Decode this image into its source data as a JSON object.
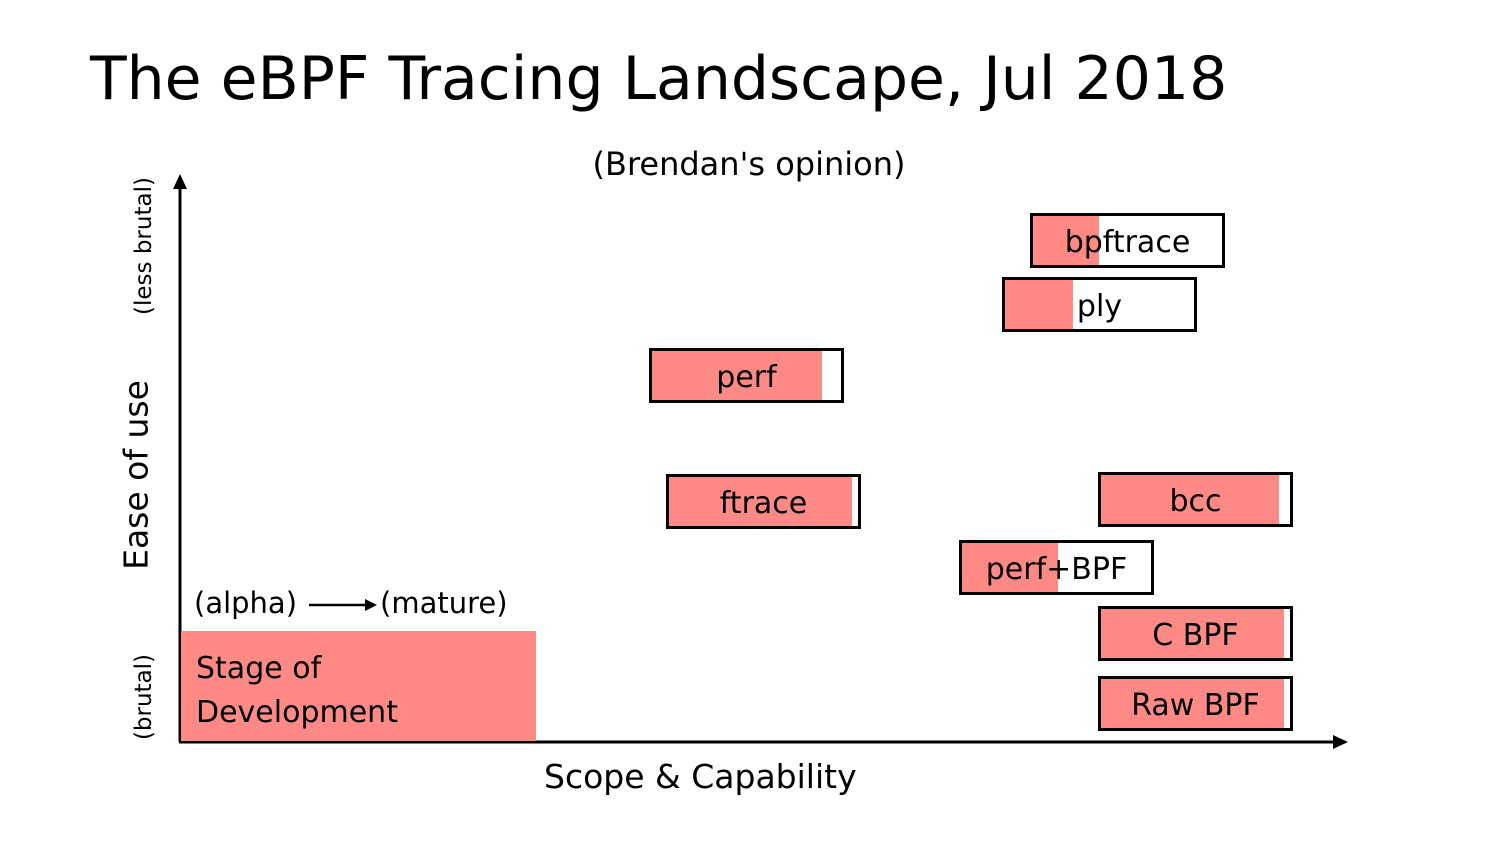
{
  "title": "The eBPF Tracing Landscape, Jul 2018",
  "subtitle": "(Brendan's opinion)",
  "axes": {
    "y_label": "Ease of use",
    "y_top": "(less brutal)",
    "y_bottom": "(brutal)",
    "x_label": "Scope & Capability"
  },
  "legend": {
    "from": "(alpha)",
    "to": "(mature)",
    "box_line1": "Stage of",
    "box_line2": "Development"
  },
  "tools": [
    {
      "name": "bpftrace",
      "maturity": 0.35
    },
    {
      "name": "ply",
      "maturity": 0.36
    },
    {
      "name": "perf",
      "maturity": 0.9
    },
    {
      "name": "ftrace",
      "maturity": 0.97
    },
    {
      "name": "bcc",
      "maturity": 0.94
    },
    {
      "name": "perf+BPF",
      "maturity": 0.51
    },
    {
      "name": "C BPF",
      "maturity": 0.97
    },
    {
      "name": "Raw BPF",
      "maturity": 0.97
    }
  ],
  "colors": {
    "fill": "#ff8a85",
    "border": "#000000"
  }
}
